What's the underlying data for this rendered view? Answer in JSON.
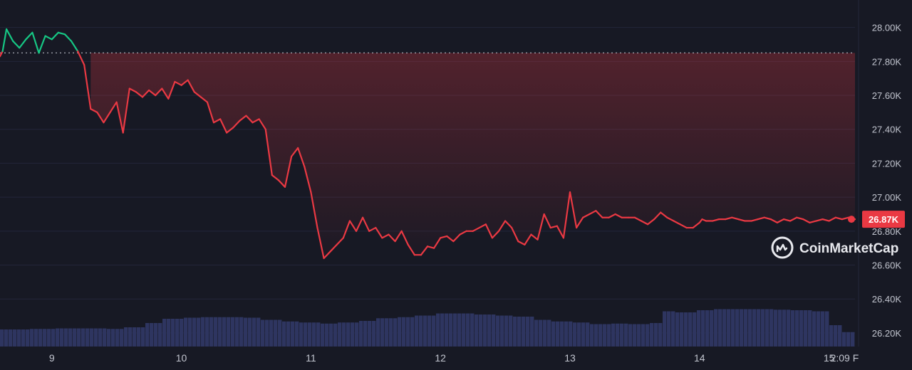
{
  "colors": {
    "background": "#171924",
    "up_line": "#16c784",
    "down_line": "#ea3943",
    "volume": "#2e3560",
    "grid": "#23263a",
    "tick_text": "#c2c5cf",
    "price_tag_bg": "#ea3943",
    "price_tag_text": "#ffffff"
  },
  "watermark": {
    "text": "CoinMarketCap",
    "icon": "coinmarketcap-logo-icon"
  },
  "current_price_label": "26.87K",
  "chart_data": {
    "type": "line",
    "title": "",
    "xlabel": "",
    "ylabel": "",
    "y_ticks": [
      "26.20K",
      "26.40K",
      "26.60K",
      "26.80K",
      "27.00K",
      "27.20K",
      "27.40K",
      "27.60K",
      "27.80K",
      "28.00K"
    ],
    "x_ticks": [
      "9",
      "10",
      "11",
      "12",
      "13",
      "14",
      "15",
      "2:09 F"
    ],
    "ylim": [
      26.12,
      28.12
    ],
    "xlim": [
      8.6,
      15.2
    ],
    "baseline": 27.85,
    "grid": true,
    "series": [
      {
        "values_unit": "thousands USD",
        "x": [
          8.6,
          8.62,
          8.65,
          8.7,
          8.75,
          8.8,
          8.85,
          8.9,
          8.95,
          9.0,
          9.05,
          9.1,
          9.15,
          9.2,
          9.25,
          9.3,
          9.35,
          9.4,
          9.45,
          9.5,
          9.55,
          9.6,
          9.65,
          9.7,
          9.75,
          9.8,
          9.85,
          9.9,
          9.95,
          10.0,
          10.05,
          10.1,
          10.15,
          10.2,
          10.25,
          10.3,
          10.35,
          10.4,
          10.45,
          10.5,
          10.55,
          10.6,
          10.65,
          10.7,
          10.75,
          10.8,
          10.85,
          10.9,
          10.95,
          11.0,
          11.05,
          11.1,
          11.15,
          11.2,
          11.25,
          11.3,
          11.35,
          11.4,
          11.45,
          11.5,
          11.55,
          11.6,
          11.65,
          11.7,
          11.75,
          11.8,
          11.85,
          11.9,
          11.95,
          12.0,
          12.05,
          12.1,
          12.15,
          12.2,
          12.25,
          12.3,
          12.35,
          12.4,
          12.45,
          12.5,
          12.55,
          12.6,
          12.65,
          12.7,
          12.75,
          12.8,
          12.85,
          12.9,
          12.95,
          13.0,
          13.05,
          13.1,
          13.15,
          13.2,
          13.25,
          13.3,
          13.35,
          13.4,
          13.45,
          13.5,
          13.55,
          13.6,
          13.65,
          13.7,
          13.75,
          13.8,
          13.85,
          13.9,
          13.95,
          14.0,
          14.02,
          14.05,
          14.1,
          14.15,
          14.2,
          14.25,
          14.3,
          14.35,
          14.4,
          14.45,
          14.5,
          14.55,
          14.6,
          14.65,
          14.7,
          14.75,
          14.8,
          14.85,
          14.9,
          14.95,
          15.0,
          15.05,
          15.1,
          15.15,
          15.2
        ],
        "values": [
          27.83,
          27.86,
          27.99,
          27.92,
          27.88,
          27.93,
          27.97,
          27.85,
          27.95,
          27.93,
          27.97,
          27.96,
          27.92,
          27.86,
          27.78,
          27.52,
          27.5,
          27.44,
          27.5,
          27.56,
          27.38,
          27.64,
          27.62,
          27.59,
          27.63,
          27.6,
          27.64,
          27.58,
          27.68,
          27.66,
          27.69,
          27.62,
          27.59,
          27.56,
          27.44,
          27.46,
          27.38,
          27.41,
          27.45,
          27.48,
          27.44,
          27.46,
          27.4,
          27.13,
          27.1,
          27.06,
          27.24,
          27.29,
          27.18,
          27.03,
          26.82,
          26.64,
          26.68,
          26.72,
          26.76,
          26.86,
          26.8,
          26.88,
          26.8,
          26.82,
          26.76,
          26.78,
          26.74,
          26.8,
          26.72,
          26.66,
          26.66,
          26.71,
          26.7,
          26.76,
          26.77,
          26.74,
          26.78,
          26.8,
          26.8,
          26.82,
          26.84,
          26.76,
          26.8,
          26.86,
          26.82,
          26.74,
          26.72,
          26.78,
          26.75,
          26.9,
          26.82,
          26.83,
          26.76,
          27.03,
          26.82,
          26.88,
          26.9,
          26.92,
          26.88,
          26.88,
          26.9,
          26.88,
          26.88,
          26.88,
          26.86,
          26.84,
          26.87,
          26.91,
          26.88,
          26.86,
          26.84,
          26.82,
          26.82,
          26.85,
          26.87,
          26.86,
          26.86,
          26.87,
          26.87,
          26.88,
          26.87,
          26.86,
          26.86,
          26.87,
          26.88,
          26.87,
          26.85,
          26.87,
          26.86,
          26.88,
          26.87,
          26.85,
          26.86,
          26.87,
          26.86,
          26.88,
          26.87,
          26.88,
          26.87
        ]
      }
    ],
    "volume": {
      "x": [
        8.6,
        8.8,
        9.0,
        9.2,
        9.4,
        9.55,
        9.7,
        9.85,
        10.0,
        10.15,
        10.3,
        10.45,
        10.6,
        10.75,
        10.9,
        11.05,
        11.2,
        11.35,
        11.5,
        11.65,
        11.8,
        11.95,
        12.1,
        12.25,
        12.4,
        12.55,
        12.7,
        12.85,
        13.0,
        13.15,
        13.3,
        13.45,
        13.6,
        13.7,
        13.8,
        13.95,
        14.1,
        14.25,
        14.4,
        14.55,
        14.7,
        14.85,
        15.0,
        15.1,
        15.2
      ],
      "values": [
        0.32,
        0.33,
        0.34,
        0.34,
        0.33,
        0.36,
        0.44,
        0.52,
        0.54,
        0.55,
        0.55,
        0.54,
        0.5,
        0.47,
        0.45,
        0.43,
        0.45,
        0.48,
        0.53,
        0.55,
        0.58,
        0.62,
        0.62,
        0.6,
        0.58,
        0.56,
        0.5,
        0.47,
        0.45,
        0.42,
        0.43,
        0.42,
        0.44,
        0.66,
        0.64,
        0.68,
        0.7,
        0.7,
        0.7,
        0.69,
        0.68,
        0.66,
        0.4,
        0.27,
        0.24
      ]
    }
  }
}
